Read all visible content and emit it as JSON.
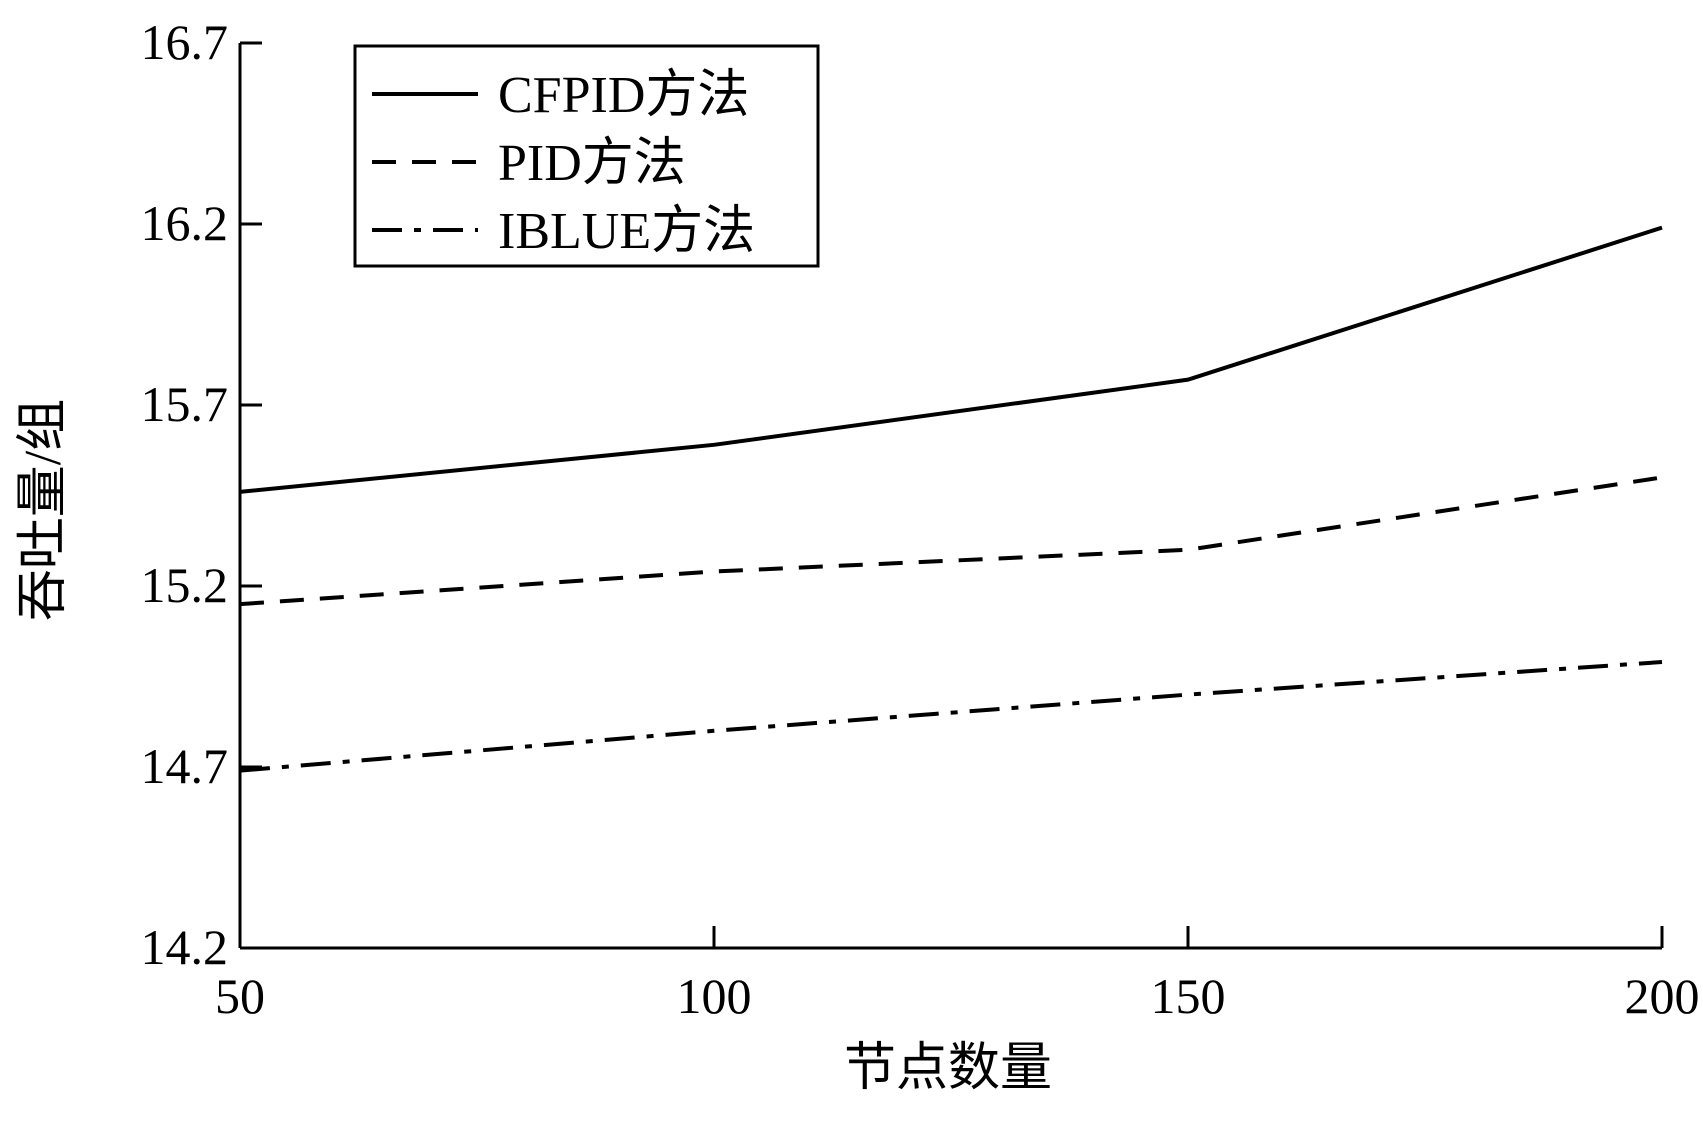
{
  "chart_data": {
    "type": "line",
    "title": "",
    "xlabel": "节点数量",
    "ylabel": "吞吐量/组",
    "x": [
      50,
      100,
      150,
      200
    ],
    "xlim": [
      50,
      200
    ],
    "ylim": [
      14.2,
      16.7
    ],
    "xticks": [
      "50",
      "100",
      "150",
      "200"
    ],
    "yticks": [
      "14.2",
      "14.7",
      "15.2",
      "15.7",
      "16.2",
      "16.7"
    ],
    "grid": false,
    "legend_position": "top-left",
    "series": [
      {
        "name": "CFPID方法",
        "style": "solid",
        "color": "#000000",
        "values": [
          15.46,
          15.59,
          15.77,
          16.19
        ]
      },
      {
        "name": "PID方法",
        "style": "dashed",
        "color": "#000000",
        "values": [
          15.15,
          15.24,
          15.3,
          15.5
        ]
      },
      {
        "name": "IBLUE方法",
        "style": "dash-dot",
        "color": "#000000",
        "values": [
          14.69,
          14.8,
          14.9,
          14.99
        ]
      }
    ]
  }
}
